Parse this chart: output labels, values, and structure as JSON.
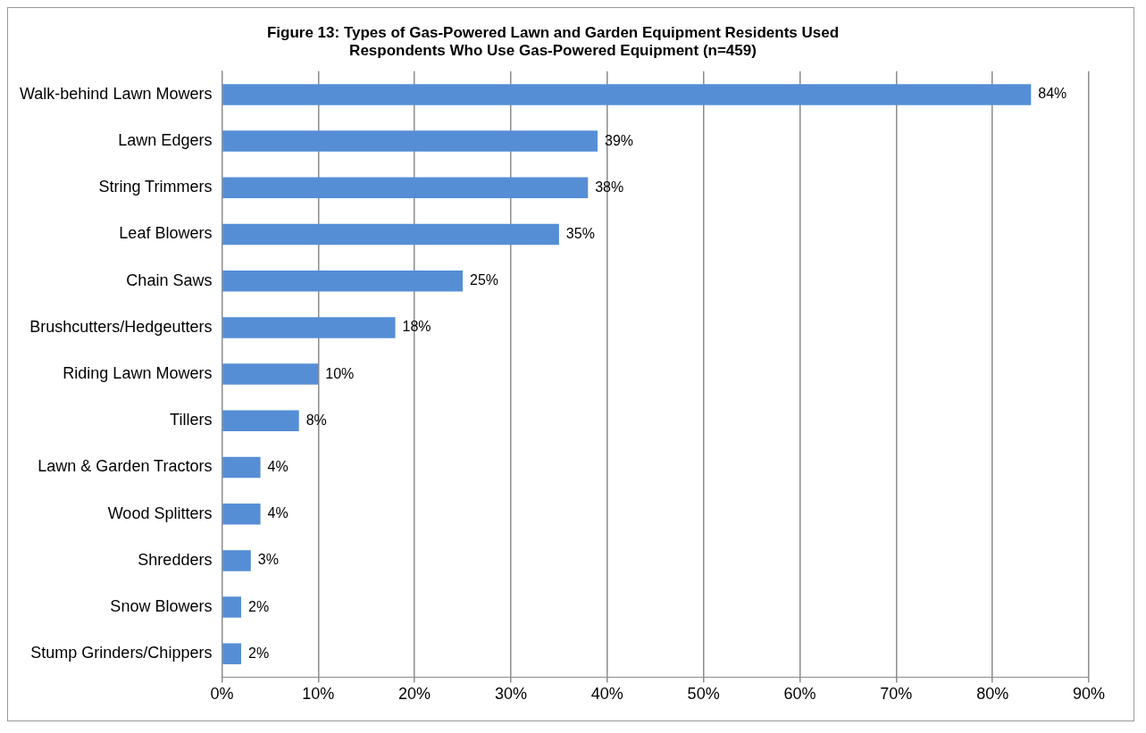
{
  "chart_data": {
    "type": "bar",
    "orientation": "horizontal",
    "title": "Figure 13: Types of Gas-Powered Lawn and Garden Equipment Residents Used",
    "subtitle": "Respondents Who Use Gas-Powered Equipment (n=459)",
    "categories": [
      "Walk-behind Lawn Mowers",
      "Lawn Edgers",
      "String Trimmers",
      "Leaf Blowers",
      "Chain Saws",
      "Brushcutters/Hedgeutters",
      "Riding Lawn Mowers",
      "Tillers",
      "Lawn & Garden Tractors",
      "Wood Splitters",
      "Shredders",
      "Snow Blowers",
      "Stump Grinders/Chippers"
    ],
    "values": [
      84,
      39,
      38,
      35,
      25,
      18,
      10,
      8,
      4,
      4,
      3,
      2,
      2
    ],
    "value_labels": [
      "84%",
      "39%",
      "38%",
      "35%",
      "25%",
      "18%",
      "10%",
      "8%",
      "4%",
      "4%",
      "3%",
      "2%",
      "2%"
    ],
    "color": "#558ed5",
    "xlim": [
      0,
      90
    ],
    "xticks": [
      {
        "value": 0,
        "label": "0%"
      },
      {
        "value": 10,
        "label": "10%"
      },
      {
        "value": 20,
        "label": "20%"
      },
      {
        "value": 30,
        "label": "30%"
      },
      {
        "value": 40,
        "label": "40%"
      },
      {
        "value": 50,
        "label": "50%"
      },
      {
        "value": 60,
        "label": "60%"
      },
      {
        "value": 70,
        "label": "70%"
      },
      {
        "value": 80,
        "label": "80%"
      },
      {
        "value": 90,
        "label": "90%"
      }
    ],
    "grid": "x",
    "legend": false
  }
}
